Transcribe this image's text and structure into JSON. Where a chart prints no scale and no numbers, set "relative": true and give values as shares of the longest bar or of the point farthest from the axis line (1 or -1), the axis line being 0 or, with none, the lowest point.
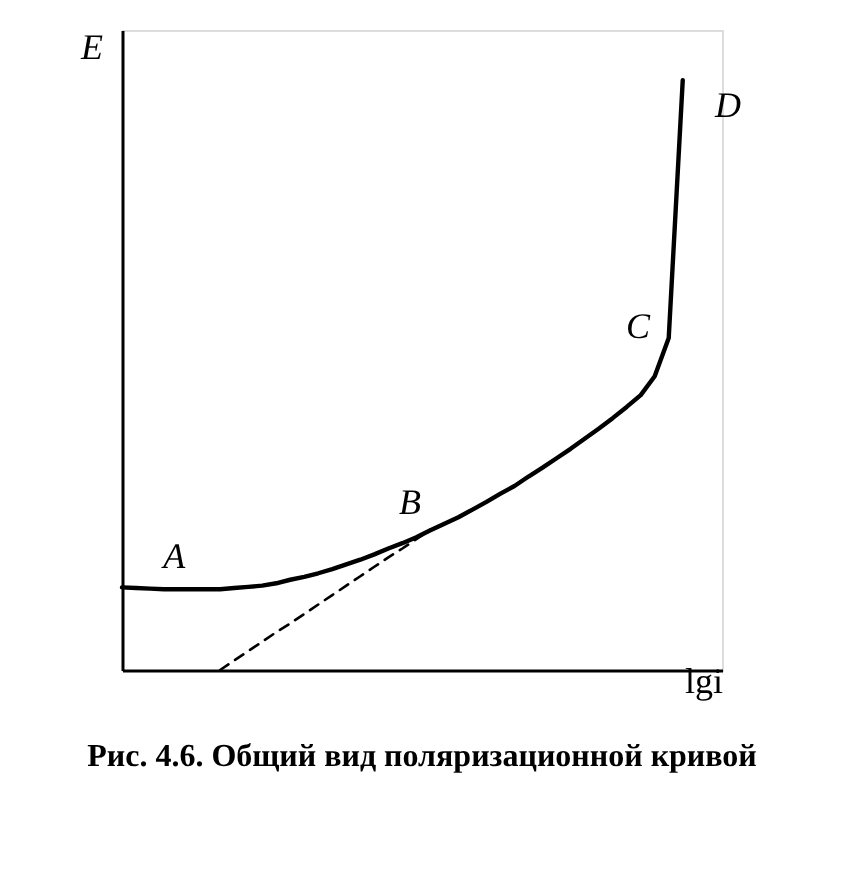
{
  "chart_data": {
    "type": "line",
    "relative": true,
    "title": "Рис. 4.6. Общий вид поляризационной кривой",
    "xlabel": "lgi",
    "ylabel": "E",
    "grid": false,
    "categories": [
      null,
      null,
      null,
      null,
      null,
      null,
      null,
      null,
      null,
      null,
      null,
      null,
      null,
      null,
      null,
      null,
      null,
      null,
      null,
      null,
      null,
      null,
      null,
      null,
      null,
      null,
      null,
      null,
      null,
      null,
      null,
      null,
      null,
      null,
      null,
      null,
      null,
      null,
      null,
      null,
      null
    ],
    "series": [
      {
        "color": "#000000",
        "line_style": "solid",
        "values": [
          0.14,
          0.139,
          0.138,
          0.137,
          0.137,
          0.137,
          0.137,
          0.137,
          0.139,
          0.141,
          0.143,
          0.147,
          0.153,
          0.158,
          0.164,
          0.171,
          0.179,
          0.187,
          0.196,
          0.206,
          0.215,
          0.225,
          0.237,
          0.248,
          0.259,
          0.272,
          0.285,
          0.299,
          0.312,
          0.328,
          0.343,
          0.359,
          0.375,
          0.392,
          0.409,
          0.427,
          0.446,
          0.466,
          0.498,
          0.563,
          1.0
        ]
      },
      {
        "color": "#000000",
        "line_style": "dashed",
        "values": [
          null,
          null,
          null,
          null,
          null,
          null,
          null,
          0,
          0.016,
          0.032,
          0.048,
          0.064,
          0.079,
          0.095,
          0.111,
          0.127,
          0.143,
          0.159,
          0.175,
          0.191,
          0.206,
          0.222,
          0.238,
          null,
          null,
          null,
          null,
          null,
          null,
          null,
          null,
          null,
          null,
          null,
          null,
          null,
          null,
          null,
          null,
          null,
          null
        ]
      }
    ],
    "annotations": [
      "A",
      "B",
      "C",
      "D"
    ]
  }
}
